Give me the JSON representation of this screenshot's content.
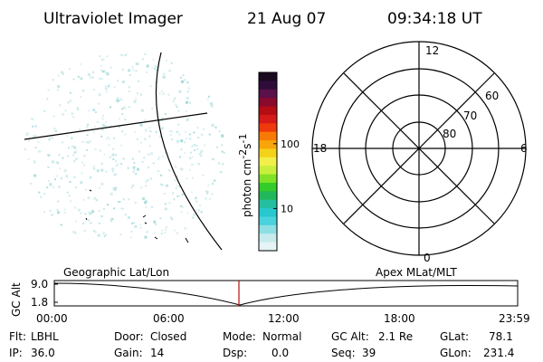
{
  "header": {
    "title": "Ultraviolet Imager",
    "date": "21 Aug 07",
    "time": "09:34:18 UT"
  },
  "colorbar": {
    "label": "photon cm",
    "label_sup1": "-2",
    "label_mid": "s",
    "label_sup2": "-1",
    "ticks": [
      "100",
      "10"
    ],
    "tick_values": [
      100,
      10
    ],
    "colors": [
      "#1a0a1f",
      "#2e0d3a",
      "#5a1049",
      "#8a0a2e",
      "#b50d14",
      "#d61a1a",
      "#ee3a0c",
      "#f77a06",
      "#f7a50a",
      "#f4d21a",
      "#f2ef4a",
      "#c9ee3c",
      "#80e227",
      "#33cc2a",
      "#22b85a",
      "#24bfa0",
      "#27c8cf",
      "#4ad2dd",
      "#8edfe3",
      "#c7ebed",
      "#e6f4f5"
    ],
    "range_log": [
      0.35,
      3.1
    ]
  },
  "polar_plot": {
    "lat_labels": [
      "60",
      "70",
      "80"
    ],
    "lat_values": [
      60,
      70,
      80
    ],
    "mlt_labels": [
      "12",
      "18",
      "6",
      "0"
    ]
  },
  "orbit_plot": {
    "left_label": "Geographic Lat/Lon",
    "right_label": "Apex  MLat/MLT",
    "ylabel": "GC Alt",
    "yticks": [
      "9.0",
      "1.8"
    ],
    "xticks": [
      "00:00",
      "06:00",
      "12:00",
      "18:00",
      "23:59"
    ],
    "marker_time": "09:34"
  },
  "footer": {
    "rows": [
      [
        {
          "label": "Flt:",
          "value": "LBHL"
        },
        {
          "label": "Door:",
          "value": "Closed"
        },
        {
          "label": "Mode:",
          "value": "Normal"
        },
        {
          "label": "GC Alt:",
          "value": "2.1 Re"
        },
        {
          "label": "GLat:",
          "value": "78.1"
        }
      ],
      [
        {
          "label": "IP:",
          "value": "36.0"
        },
        {
          "label": "Gain:",
          "value": "14"
        },
        {
          "label": "Dsp:",
          "value": "0.0"
        },
        {
          "label": "Seq:",
          "value": "39"
        },
        {
          "label": "GLon:",
          "value": "231.4"
        }
      ]
    ]
  },
  "colors": {
    "speckle": "#bfe3e3",
    "orbit_marker": "#b01010",
    "line": "#000000"
  }
}
